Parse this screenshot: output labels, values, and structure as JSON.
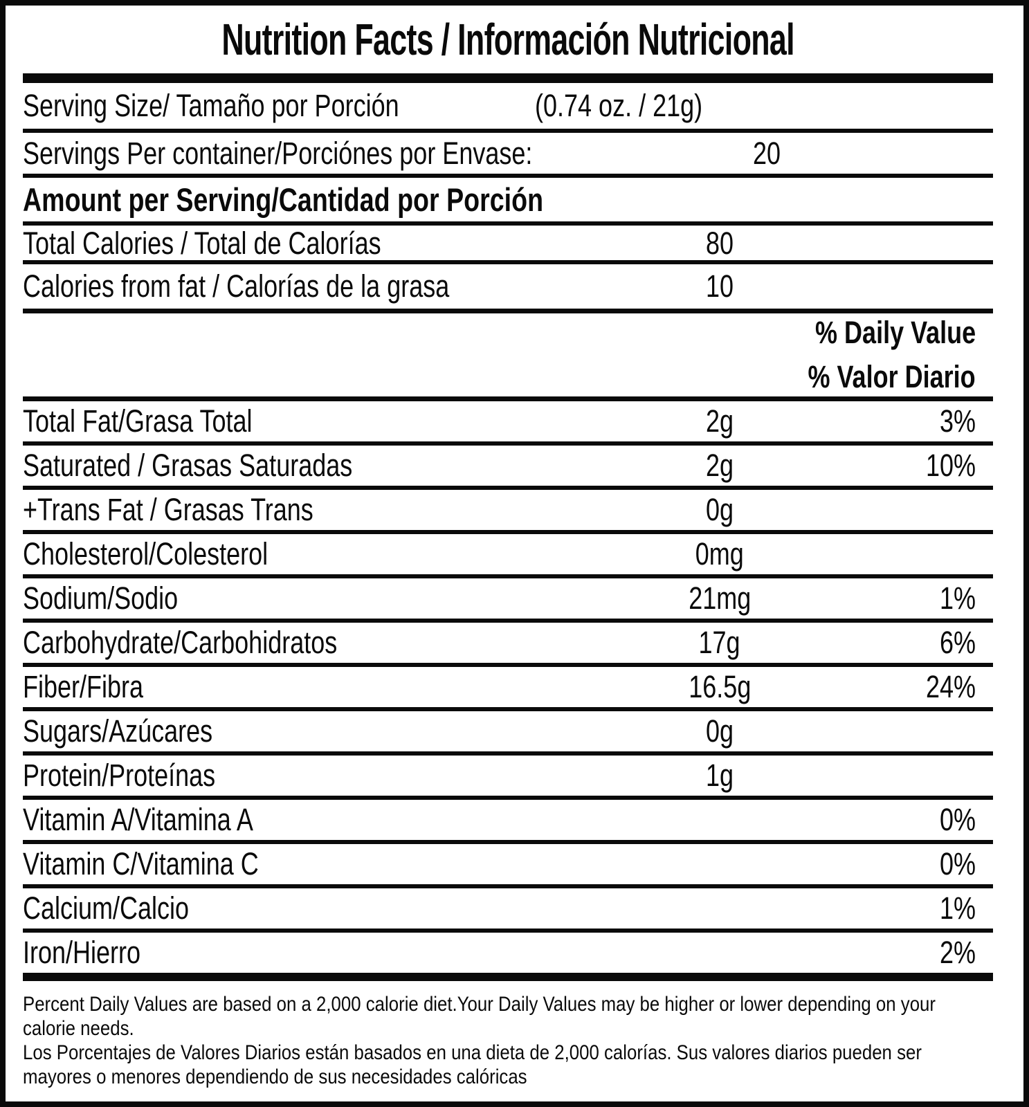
{
  "title": "Nutrition Facts / Información Nutricional",
  "serving_info": {
    "size_label": "Serving Size/ Tamaño por Porción",
    "size_value": "(0.74 oz. / 21g)",
    "per_container_label": "Servings Per container/Porciónes por Envase:",
    "per_container_value": "20"
  },
  "amount_header": "Amount per Serving/Cantidad por Porción",
  "calories": {
    "total": {
      "label": "Total Calories / Total de Calorías",
      "value": "80"
    },
    "from_fat": {
      "label": "Calories from fat / Calorías de la grasa",
      "value": "10"
    }
  },
  "daily_value_header": {
    "line1": "% Daily Value",
    "line2": "% Valor Diario"
  },
  "nutrients": [
    {
      "label": "Total Fat/Grasa Total",
      "amount": "2g",
      "dv": "3%"
    },
    {
      "label": "Saturated / Grasas Saturadas",
      "amount": "2g",
      "dv": "10%"
    },
    {
      "label": "+Trans Fat / Grasas Trans",
      "amount": "0g",
      "dv": ""
    },
    {
      "label": "Cholesterol/Colesterol",
      "amount": "0mg",
      "dv": ""
    },
    {
      "label": "Sodium/Sodio",
      "amount": "21mg",
      "dv": "1%"
    },
    {
      "label": "Carbohydrate/Carbohidratos",
      "amount": "17g",
      "dv": "6%"
    },
    {
      "label": "Fiber/Fibra",
      "amount": "16.5g",
      "dv": "24%"
    },
    {
      "label": "Sugars/Azúcares",
      "amount": "0g",
      "dv": ""
    },
    {
      "label": "Protein/Proteínas",
      "amount": "1g",
      "dv": ""
    },
    {
      "label": "Vitamin A/Vitamina A",
      "amount": "",
      "dv": "0%"
    },
    {
      "label": "Vitamin C/Vitamina C",
      "amount": "",
      "dv": "0%"
    },
    {
      "label": "Calcium/Calcio",
      "amount": "",
      "dv": "1%"
    },
    {
      "label": "Iron/Hierro",
      "amount": "",
      "dv": "2%"
    }
  ],
  "footnote": {
    "lines": [
      "Percent Daily Values are based on a 2,000 calorie diet.Your Daily Values may be higher or lower depending on your",
      "calorie needs.",
      "Los Porcentajes de Valores Diarios están basados en una dieta de 2,000 calorías. Sus valores diarios pueden ser",
      "mayores o menores dependiendo de sus necesidades calóricas"
    ]
  },
  "colors": {
    "ink": "#0a0a0a",
    "paper": "#ffffff"
  }
}
